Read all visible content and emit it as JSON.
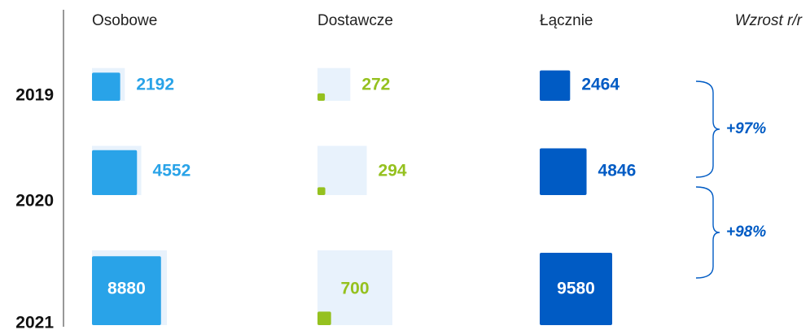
{
  "chart_data": {
    "type": "squares",
    "categories": [
      "2019",
      "2020",
      "2021"
    ],
    "series": [
      {
        "name": "Osobowe",
        "color": "#29a3e8",
        "values": [
          2192,
          4552,
          8880
        ]
      },
      {
        "name": "Dostawcze",
        "color": "#95c11f",
        "values": [
          272,
          294,
          700
        ]
      },
      {
        "name": "Łącznie",
        "color": "#005bc4",
        "values": [
          2464,
          4846,
          9580
        ]
      }
    ],
    "growth": {
      "title": "Wzrost r/r",
      "color": "#005bc4",
      "values": [
        97,
        98
      ],
      "value_labels": [
        "+97%",
        "+98%"
      ]
    },
    "background_color": "#e8f2fc"
  }
}
